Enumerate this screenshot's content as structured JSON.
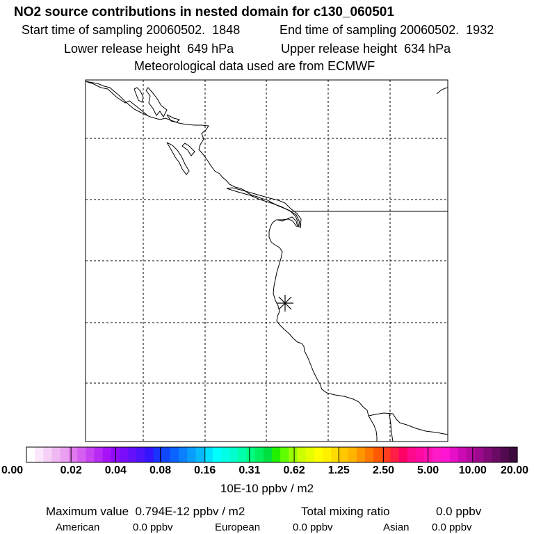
{
  "title": "NO2 source contributions in nested domain for c130_060501",
  "header": {
    "start_label": "Start time of sampling 20060502.  1848",
    "end_label": "End time of sampling 20060502.  1932",
    "lower_label": "Lower release height  649 hPa",
    "upper_label": "Upper release height  634 hPa",
    "met_label": "Meteorological data used are from ECMWF"
  },
  "map": {
    "marker": "asterisk-release-point",
    "marker_name": "release-site-marker"
  },
  "colorbar": {
    "ticks": [
      "0.00",
      "0.02",
      "0.04",
      "0.08",
      "0.16",
      "0.31",
      "0.62",
      "1.25",
      "2.50",
      "5.00",
      "10.00",
      "20.00"
    ],
    "colors": [
      "#ffffff",
      "#fbe7fb",
      "#f6d0f6",
      "#f0b8f3",
      "#eb9ff0",
      "#e07aee",
      "#d45ff0",
      "#c843f2",
      "#b92af4",
      "#a812f6",
      "#8f0cf8",
      "#7a0df9",
      "#6510fa",
      "#4e12fb",
      "#3414fc",
      "#1a33fd",
      "#1048fd",
      "#0a63fe",
      "#0a80fe",
      "#099dfe",
      "#09b9fe",
      "#00e0ff",
      "#00ffff",
      "#00ffe6",
      "#00ffcc",
      "#00ffaa",
      "#00ff80",
      "#00f060",
      "#00e040",
      "#20f000",
      "#60ff00",
      "#99ff00",
      "#ccff00",
      "#e6ff00",
      "#ffff00",
      "#fff000",
      "#ffdc00",
      "#ffc800",
      "#ffb400",
      "#ff9600",
      "#ff7800",
      "#ff5a00",
      "#ff3c1e",
      "#ff1e46",
      "#ff0064",
      "#ff0a8c",
      "#ff0aa0",
      "#ff12b4",
      "#ff1ac8",
      "#ff14d2",
      "#e60fc8",
      "#cc0ab4",
      "#b40aa0",
      "#9c0a8c",
      "#820a78",
      "#6a0a64",
      "#520a50",
      "#3c0a3c"
    ],
    "unit_label": "10E-10 ppbv / m2"
  },
  "footer": {
    "max_label": "Maximum value  0.794E-12 ppbv / m2",
    "total_label": "Total mixing ratio",
    "total_value": "0.0 ppbv",
    "american_label": "American",
    "american_value": "0.0 ppbv",
    "european_label": "European",
    "european_value": "0.0 ppbv",
    "asian_label": "Asian",
    "asian_value": "0.0 ppbv"
  }
}
